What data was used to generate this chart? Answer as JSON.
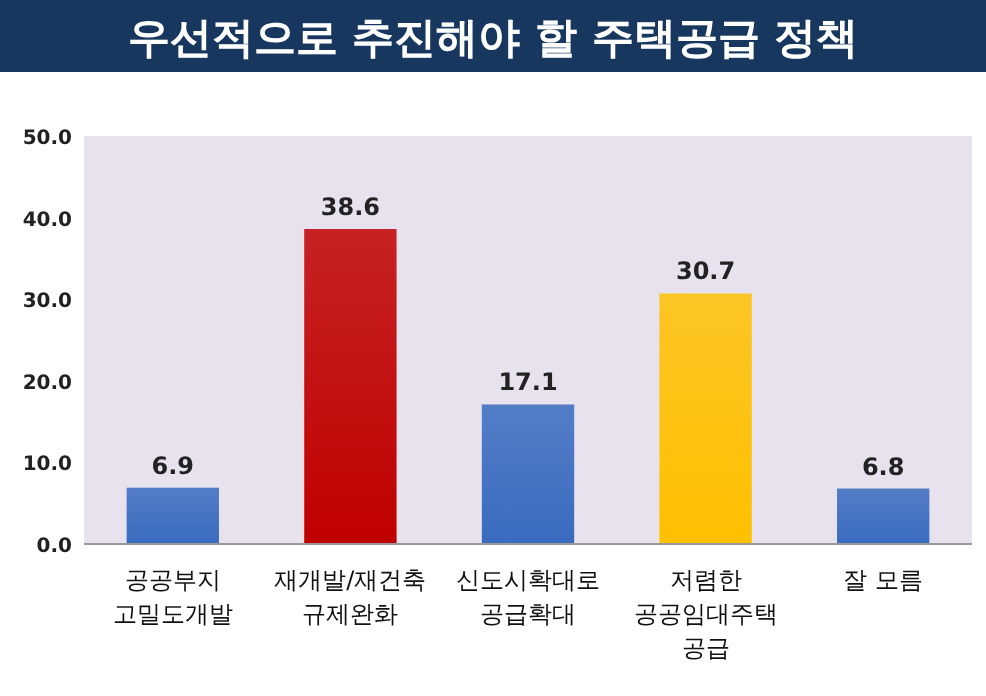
{
  "chart_data": {
    "type": "bar",
    "title": "우선적으로 추진해야 할 주택공급 정책",
    "categories": [
      "공공부지\n고밀도개발",
      "재개발/재건축\n규제완화",
      "신도시확대로\n공급확대",
      "저렴한\n공공임대주택\n공급",
      "잘 모름"
    ],
    "values": [
      6.9,
      38.6,
      17.1,
      30.7,
      6.8
    ],
    "colors": [
      "#3a6bbf",
      "#c00000",
      "#3a6bbf",
      "#ffc000",
      "#3a6bbf"
    ],
    "ylim": [
      0,
      50
    ],
    "yticks": [
      {
        "value": 0,
        "label": "0.0"
      },
      {
        "value": 10,
        "label": "10.0"
      },
      {
        "value": 20,
        "label": "20.0"
      },
      {
        "value": 30,
        "label": "30.0"
      },
      {
        "value": 40,
        "label": "40.0"
      },
      {
        "value": 50,
        "label": "50.0"
      }
    ],
    "data_labels": true
  }
}
